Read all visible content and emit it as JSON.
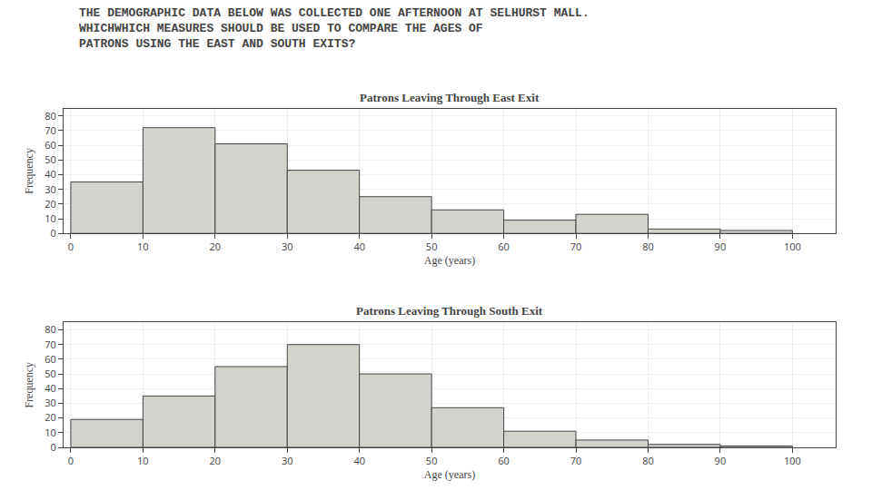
{
  "title": "THE DEMOGRAPHIC DATA BELOW WAS COLLECTED ONE AFTERNOON AT SELHURST MALL.\nWHICHWHICH MEASURES SHOULD BE USED TO COMPARE THE AGES OF\nPATRONS USING THE EAST AND SOUTH EXITS?",
  "chart_data": [
    {
      "type": "histogram",
      "title": "Patrons Leaving Through East Exit",
      "xlabel": "Age (years)",
      "ylabel": "Frequency",
      "bins": [
        0,
        10,
        20,
        30,
        40,
        50,
        60,
        70,
        80,
        90,
        100
      ],
      "values": [
        35,
        72,
        61,
        43,
        25,
        16,
        9,
        13,
        3,
        2
      ],
      "color": "#d4d2cc",
      "xlim": [
        -1,
        106
      ],
      "xticks": [
        0,
        10,
        20,
        30,
        40,
        50,
        60,
        70,
        80,
        90,
        100
      ],
      "ylim": [
        0,
        85
      ],
      "yticks": [
        0,
        10,
        20,
        30,
        40,
        50,
        60,
        70,
        80
      ],
      "grid": true
    },
    {
      "type": "histogram",
      "title": "Patrons Leaving Through South Exit",
      "xlabel": "Age (years)",
      "ylabel": "Frequency",
      "bins": [
        0,
        10,
        20,
        30,
        40,
        50,
        60,
        70,
        80,
        90,
        100
      ],
      "values": [
        19,
        35,
        55,
        70,
        50,
        27,
        11,
        5,
        2,
        1
      ],
      "color": "#d4d2cc",
      "xlim": [
        -1,
        106
      ],
      "xticks": [
        0,
        10,
        20,
        30,
        40,
        50,
        60,
        70,
        80,
        90,
        100
      ],
      "ylim": [
        0,
        85
      ],
      "yticks": [
        0,
        10,
        20,
        30,
        40,
        50,
        60,
        70,
        80
      ],
      "grid": true
    }
  ]
}
